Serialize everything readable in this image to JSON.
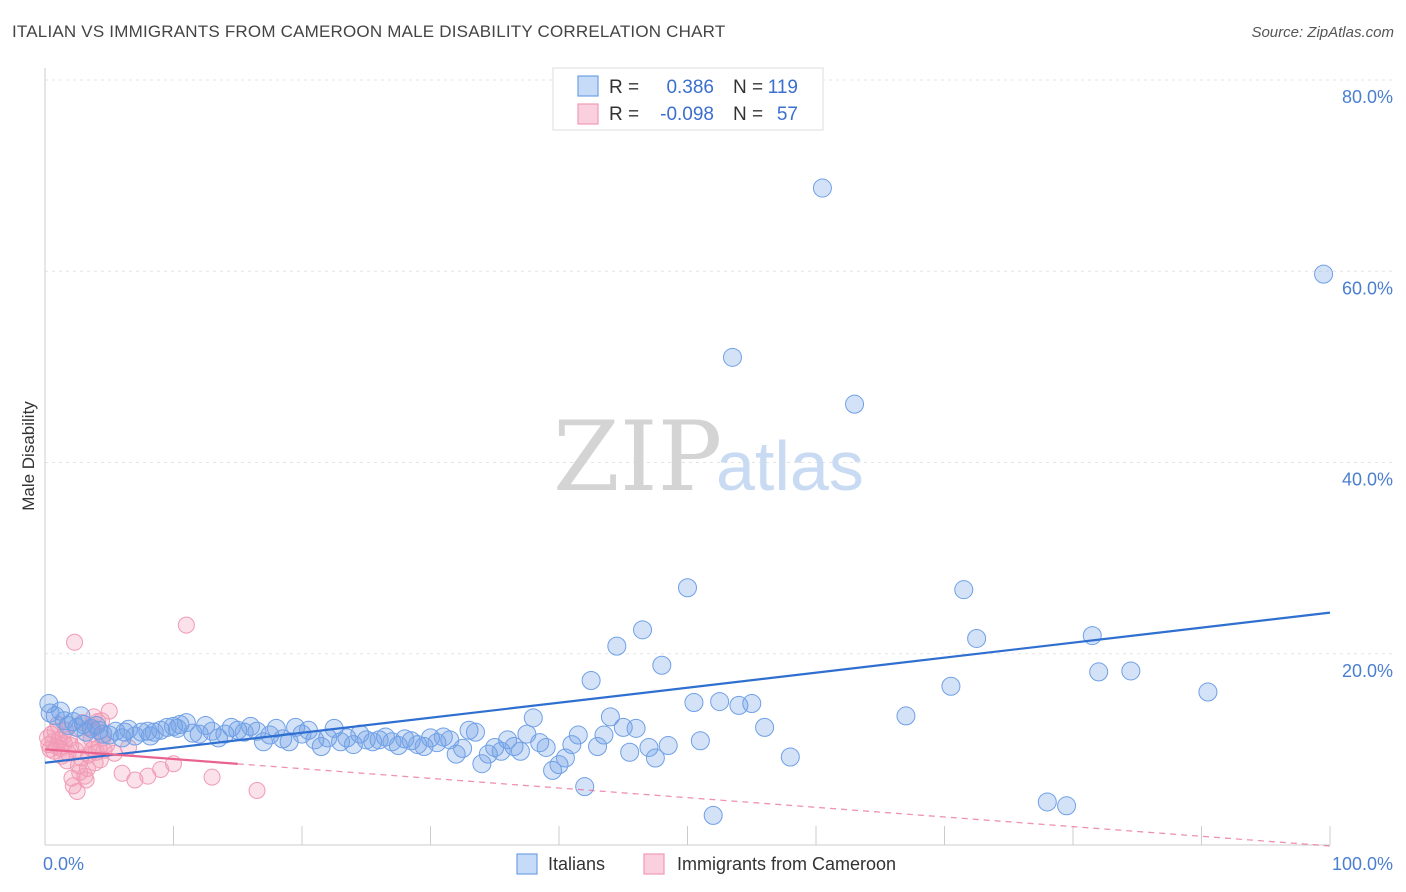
{
  "header": {
    "title": "ITALIAN VS IMMIGRANTS FROM CAMEROON MALE DISABILITY CORRELATION CHART",
    "source": "Source: ZipAtlas.com"
  },
  "watermark": {
    "zip": "ZIP",
    "atlas": "atlas"
  },
  "stats": [
    {
      "r_label": "R =",
      "r_value": "0.386",
      "n_label": "N =",
      "n_value": "119",
      "color": "#6fa0e6"
    },
    {
      "r_label": "R =",
      "r_value": "-0.098",
      "n_label": "N =",
      "n_value": "57",
      "color": "#f19bb6"
    }
  ],
  "chart_data": {
    "type": "scatter",
    "title": "ITALIAN VS IMMIGRANTS FROM CAMEROON MALE DISABILITY CORRELATION CHART",
    "xlabel": "",
    "ylabel": "Male Disability",
    "xlim": [
      0,
      100
    ],
    "ylim": [
      0,
      80
    ],
    "x_tick_labels": [
      "0.0%",
      "100.0%"
    ],
    "y_ticks": [
      20,
      40,
      60,
      80
    ],
    "y_tick_labels": [
      "20.0%",
      "40.0%",
      "60.0%",
      "80.0%"
    ],
    "grid": true,
    "legend_position": "bottom-center",
    "series": [
      {
        "name": "Italians",
        "color": "#6fa0e6",
        "trend": {
          "x": [
            0,
            100
          ],
          "y": [
            8.6,
            24.3
          ],
          "style": "solid",
          "color": "#2f6fd0"
        },
        "points": [
          [
            0.3,
            14.8
          ],
          [
            0.8,
            13.5
          ],
          [
            1.2,
            14.0
          ],
          [
            1.8,
            12.5
          ],
          [
            2.2,
            12.9
          ],
          [
            2.8,
            13.5
          ],
          [
            3.2,
            11.8
          ],
          [
            3.6,
            12.2
          ],
          [
            4.0,
            12.5
          ],
          [
            4.5,
            11.6
          ],
          [
            5.0,
            11.5
          ],
          [
            5.5,
            11.9
          ],
          [
            6.0,
            11.2
          ],
          [
            6.5,
            12.1
          ],
          [
            7.0,
            11.4
          ],
          [
            7.5,
            11.8
          ],
          [
            8.0,
            11.9
          ],
          [
            8.5,
            11.8
          ],
          [
            9.0,
            12.0
          ],
          [
            9.5,
            12.3
          ],
          [
            10.0,
            12.4
          ],
          [
            10.5,
            12.6
          ],
          [
            11.0,
            12.8
          ],
          [
            11.5,
            11.7
          ],
          [
            12.0,
            11.6
          ],
          [
            12.5,
            12.5
          ],
          [
            13.0,
            11.9
          ],
          [
            13.5,
            11.2
          ],
          [
            14.0,
            11.6
          ],
          [
            14.5,
            12.3
          ],
          [
            15.0,
            12.0
          ],
          [
            15.5,
            11.8
          ],
          [
            16.0,
            12.4
          ],
          [
            16.5,
            11.9
          ],
          [
            17.0,
            10.8
          ],
          [
            17.5,
            11.5
          ],
          [
            18.0,
            12.2
          ],
          [
            18.5,
            11.1
          ],
          [
            19.0,
            10.8
          ],
          [
            19.5,
            12.3
          ],
          [
            20.0,
            11.6
          ],
          [
            20.5,
            12.0
          ],
          [
            21.0,
            11.0
          ],
          [
            21.5,
            10.3
          ],
          [
            22.0,
            11.2
          ],
          [
            22.5,
            12.2
          ],
          [
            23.0,
            10.8
          ],
          [
            23.5,
            11.2
          ],
          [
            24.0,
            10.5
          ],
          [
            24.5,
            11.6
          ],
          [
            25.0,
            11.0
          ],
          [
            25.5,
            10.8
          ],
          [
            26.0,
            11.0
          ],
          [
            26.5,
            11.3
          ],
          [
            27.0,
            10.8
          ],
          [
            27.5,
            10.4
          ],
          [
            28.0,
            11.1
          ],
          [
            28.5,
            10.9
          ],
          [
            29.0,
            10.5
          ],
          [
            29.5,
            10.3
          ],
          [
            30.0,
            11.2
          ],
          [
            30.5,
            10.7
          ],
          [
            31.0,
            11.3
          ],
          [
            31.5,
            11.0
          ],
          [
            32.0,
            9.5
          ],
          [
            32.5,
            10.1
          ],
          [
            33.0,
            12.0
          ],
          [
            33.5,
            11.8
          ],
          [
            34.0,
            8.5
          ],
          [
            34.5,
            9.5
          ],
          [
            35.0,
            10.2
          ],
          [
            35.5,
            9.8
          ],
          [
            36.0,
            11.0
          ],
          [
            36.5,
            10.3
          ],
          [
            37.0,
            9.8
          ],
          [
            37.5,
            11.6
          ],
          [
            38.0,
            13.3
          ],
          [
            38.5,
            10.7
          ],
          [
            39.0,
            10.2
          ],
          [
            39.5,
            7.8
          ],
          [
            40.0,
            8.4
          ],
          [
            40.5,
            9.1
          ],
          [
            41.0,
            10.5
          ],
          [
            41.5,
            11.5
          ],
          [
            42.0,
            6.1
          ],
          [
            42.5,
            17.2
          ],
          [
            43.0,
            10.3
          ],
          [
            43.5,
            11.5
          ],
          [
            44.0,
            13.4
          ],
          [
            44.5,
            20.8
          ],
          [
            45.0,
            12.3
          ],
          [
            45.5,
            9.7
          ],
          [
            46.0,
            12.2
          ],
          [
            46.5,
            22.5
          ],
          [
            47.0,
            10.2
          ],
          [
            47.5,
            9.1
          ],
          [
            48.0,
            18.8
          ],
          [
            48.5,
            10.4
          ],
          [
            50.0,
            26.9
          ],
          [
            50.5,
            14.9
          ],
          [
            51.0,
            10.9
          ],
          [
            52.0,
            3.1
          ],
          [
            52.5,
            15.0
          ],
          [
            53.5,
            51.0
          ],
          [
            54.0,
            14.6
          ],
          [
            55.0,
            14.8
          ],
          [
            56.0,
            12.3
          ],
          [
            58.0,
            9.2
          ],
          [
            60.5,
            68.7
          ],
          [
            63.0,
            46.1
          ],
          [
            67.0,
            13.5
          ],
          [
            70.5,
            16.6
          ],
          [
            71.5,
            26.7
          ],
          [
            72.5,
            21.6
          ],
          [
            78.0,
            4.5
          ],
          [
            79.5,
            4.1
          ],
          [
            81.5,
            21.9
          ],
          [
            82.0,
            18.1
          ],
          [
            84.5,
            18.2
          ],
          [
            90.5,
            16.0
          ],
          [
            99.5,
            59.7
          ],
          [
            0.4,
            13.8
          ],
          [
            1.5,
            13.0
          ],
          [
            2.5,
            12.3
          ],
          [
            3.0,
            12.6
          ],
          [
            4.2,
            12.0
          ],
          [
            6.2,
            11.8
          ],
          [
            8.2,
            11.4
          ],
          [
            10.3,
            12.2
          ]
        ]
      },
      {
        "name": "Immigrants from Cameroon",
        "color": "#f19bb6",
        "trend": {
          "x": [
            0,
            100
          ],
          "y": [
            10.0,
            -0.1
          ],
          "style": "dashed",
          "color": "#e9638f",
          "solid_until": 15
        },
        "points": [
          [
            0.2,
            11.2
          ],
          [
            0.3,
            10.5
          ],
          [
            0.4,
            10.0
          ],
          [
            0.5,
            11.6
          ],
          [
            0.6,
            10.8
          ],
          [
            0.7,
            9.8
          ],
          [
            0.8,
            11.9
          ],
          [
            0.9,
            10.3
          ],
          [
            1.0,
            12.6
          ],
          [
            1.1,
            11.0
          ],
          [
            1.2,
            10.1
          ],
          [
            1.3,
            9.3
          ],
          [
            1.4,
            11.3
          ],
          [
            1.5,
            10.6
          ],
          [
            1.6,
            12.0
          ],
          [
            1.7,
            8.8
          ],
          [
            1.8,
            9.6
          ],
          [
            1.9,
            11.1
          ],
          [
            2.0,
            10.4
          ],
          [
            2.1,
            7.0
          ],
          [
            2.2,
            6.2
          ],
          [
            2.3,
            21.2
          ],
          [
            2.4,
            9.9
          ],
          [
            2.5,
            5.6
          ],
          [
            2.6,
            8.3
          ],
          [
            2.7,
            7.6
          ],
          [
            2.8,
            9.1
          ],
          [
            2.9,
            12.8
          ],
          [
            3.0,
            10.7
          ],
          [
            3.1,
            7.2
          ],
          [
            3.2,
            6.8
          ],
          [
            3.3,
            8.0
          ],
          [
            3.4,
            9.4
          ],
          [
            3.5,
            12.3
          ],
          [
            3.6,
            11.1
          ],
          [
            3.7,
            10.0
          ],
          [
            3.8,
            13.4
          ],
          [
            3.9,
            8.6
          ],
          [
            4.0,
            9.7
          ],
          [
            4.1,
            12.9
          ],
          [
            4.2,
            10.2
          ],
          [
            4.3,
            8.9
          ],
          [
            4.4,
            13.0
          ],
          [
            4.5,
            11.2
          ],
          [
            4.6,
            9.9
          ],
          [
            4.8,
            10.5
          ],
          [
            5.0,
            14.0
          ],
          [
            5.4,
            9.6
          ],
          [
            6.0,
            7.5
          ],
          [
            6.5,
            10.2
          ],
          [
            7.0,
            6.8
          ],
          [
            8.0,
            7.2
          ],
          [
            9.0,
            7.9
          ],
          [
            10.0,
            8.5
          ],
          [
            11.0,
            23.0
          ],
          [
            13.0,
            7.1
          ],
          [
            16.5,
            5.7
          ]
        ]
      }
    ]
  }
}
